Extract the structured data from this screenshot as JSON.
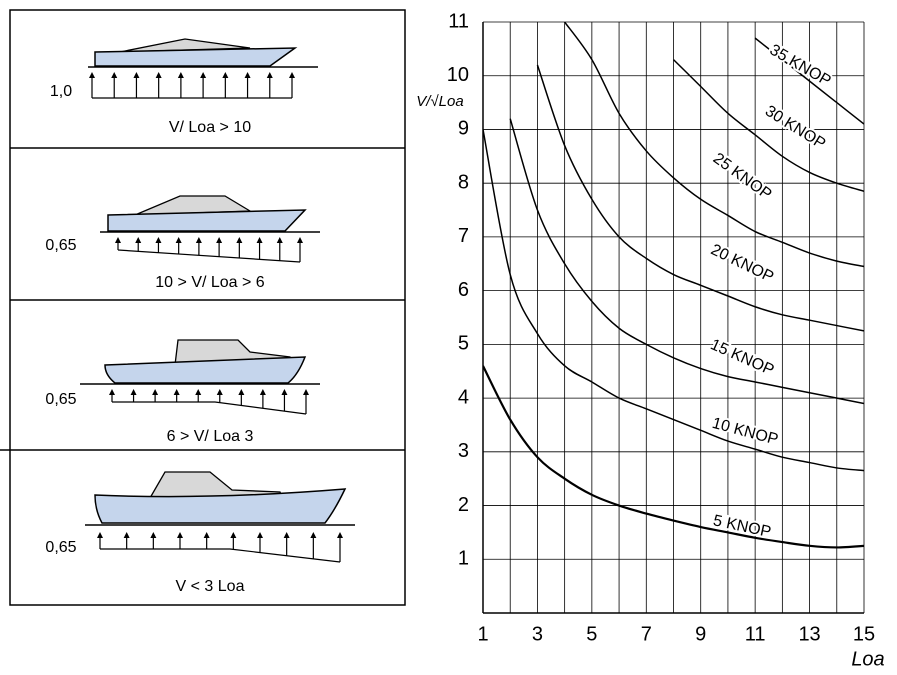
{
  "panels": [
    {
      "factor": "1,0",
      "caption": "V/ Loa > 10"
    },
    {
      "factor": "0,65",
      "caption": "10 > V/ Loa > 6"
    },
    {
      "factor": "0,65",
      "caption": "6 > V/ Loa 3"
    },
    {
      "factor": "0,65",
      "caption": "V < 3 Loa"
    }
  ],
  "chart_data": {
    "type": "line",
    "y_label": "V/√Loa",
    "x_label": "Loa",
    "x": [
      1,
      2,
      3,
      4,
      5,
      6,
      7,
      8,
      9,
      10,
      11,
      12,
      13,
      14,
      15
    ],
    "xlim": [
      1,
      15
    ],
    "xticks": [
      1,
      3,
      5,
      7,
      9,
      11,
      13,
      15
    ],
    "xminor": [
      2,
      4,
      6,
      8,
      10,
      12,
      14
    ],
    "ylim": [
      0,
      11
    ],
    "yticks": [
      1,
      2,
      3,
      4,
      5,
      6,
      7,
      8,
      9,
      10,
      11
    ],
    "grid": true,
    "series": [
      {
        "name": "5 KNOP",
        "color": "#000",
        "values": [
          4.6,
          3.6,
          2.9,
          2.5,
          2.2,
          2.0,
          1.85,
          1.72,
          1.6,
          1.5,
          1.4,
          1.32,
          1.25,
          1.22,
          1.25
        ]
      },
      {
        "name": "10 KNOP",
        "color": "#000",
        "values": [
          9.0,
          6.3,
          5.2,
          4.6,
          4.3,
          4.0,
          3.8,
          3.6,
          3.4,
          3.2,
          3.05,
          2.9,
          2.8,
          2.7,
          2.65
        ]
      },
      {
        "name": "15 KNOP",
        "color": "#000",
        "values": [
          null,
          9.2,
          7.5,
          6.5,
          5.8,
          5.3,
          5.0,
          4.75,
          4.55,
          4.4,
          4.3,
          4.2,
          4.1,
          4.0,
          3.9
        ]
      },
      {
        "name": "20 KNOP",
        "color": "#000",
        "values": [
          null,
          null,
          10.2,
          8.7,
          7.7,
          7.0,
          6.6,
          6.3,
          6.1,
          5.9,
          5.7,
          5.55,
          5.45,
          5.35,
          5.25
        ]
      },
      {
        "name": "25 KNOP",
        "color": "#000",
        "values": [
          null,
          null,
          null,
          11,
          10.3,
          9.3,
          8.6,
          8.1,
          7.7,
          7.4,
          7.1,
          6.9,
          6.7,
          6.55,
          6.45
        ]
      },
      {
        "name": "30 KNOP",
        "color": "#000",
        "values": [
          null,
          null,
          null,
          null,
          null,
          null,
          null,
          10.3,
          9.8,
          9.3,
          8.9,
          8.5,
          8.2,
          8.0,
          7.85
        ]
      },
      {
        "name": "35 KNOP",
        "color": "#000",
        "values": [
          null,
          null,
          null,
          null,
          null,
          null,
          null,
          null,
          null,
          null,
          10.7,
          10.3,
          9.9,
          9.5,
          9.1
        ]
      }
    ]
  }
}
